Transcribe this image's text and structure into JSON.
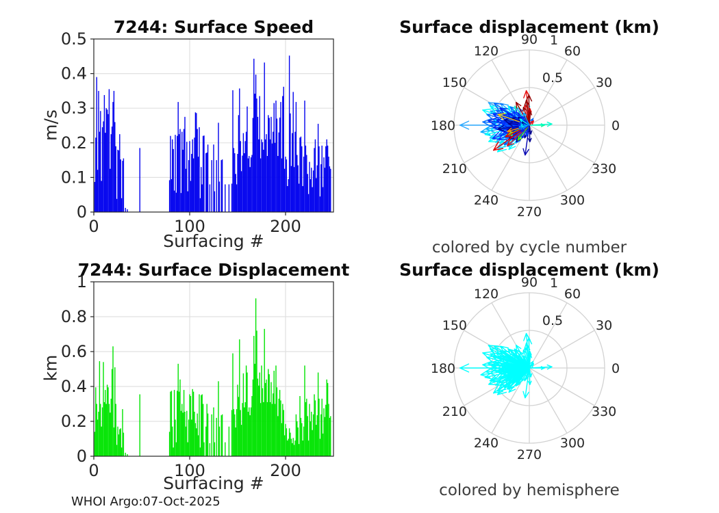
{
  "figure": {
    "watermark": "WHOI Argo:07-Oct-2025",
    "background": "#ffffff",
    "axis_color": "#262626",
    "tick_label_color": "#262626",
    "grid_color": "#e0e0e0",
    "polar_grid_color": "#d2d2d2"
  },
  "displacement_vectors": [
    {
      "a": 180,
      "r": 0.92,
      "c": "#29A8FF"
    },
    {
      "a": 151,
      "r": 0.62,
      "c": "#29A8FF"
    },
    {
      "a": 188,
      "r": 0.65,
      "c": "#00AAFF"
    },
    {
      "a": 160,
      "r": 0.55,
      "c": "#00AAFF"
    },
    {
      "a": 143,
      "r": 0.48,
      "c": "#29A8FF"
    },
    {
      "a": 170,
      "r": 0.48,
      "c": "#0090FF"
    },
    {
      "a": 185,
      "r": 0.58,
      "c": "#00AAFF"
    },
    {
      "a": 198,
      "r": 0.55,
      "c": "#2FB0FF"
    },
    {
      "a": 207,
      "r": 0.5,
      "c": "#00AAFF"
    },
    {
      "a": 216,
      "r": 0.52,
      "c": "#38B8FF"
    },
    {
      "a": 225,
      "r": 0.4,
      "c": "#00AAFF"
    },
    {
      "a": 233,
      "r": 0.3,
      "c": "#29A8FF"
    },
    {
      "a": 154,
      "r": 0.58,
      "c": "#00FFFF"
    },
    {
      "a": 147,
      "r": 0.42,
      "c": "#00F5FF"
    },
    {
      "a": 162,
      "r": 0.65,
      "c": "#00FFFF"
    },
    {
      "a": 175,
      "r": 0.5,
      "c": "#00FFFF"
    },
    {
      "a": 183,
      "r": 0.4,
      "c": "#00F5FF"
    },
    {
      "a": 192,
      "r": 0.6,
      "c": "#00FFFF"
    },
    {
      "a": 202,
      "r": 0.58,
      "c": "#00FFFF"
    },
    {
      "a": 211,
      "r": 0.45,
      "c": "#00F0FF"
    },
    {
      "a": 220,
      "r": 0.55,
      "c": "#00FFFF"
    },
    {
      "a": 230,
      "r": 0.42,
      "c": "#00FFFF"
    },
    {
      "a": 138,
      "r": 0.38,
      "c": "#00E8FF"
    },
    {
      "a": 95,
      "r": 0.3,
      "c": "#00D8FF"
    },
    {
      "a": 148,
      "r": 0.55,
      "c": "#0066FF"
    },
    {
      "a": 156,
      "r": 0.48,
      "c": "#0066FF"
    },
    {
      "a": 166,
      "r": 0.58,
      "c": "#0070FF"
    },
    {
      "a": 172,
      "r": 0.38,
      "c": "#0066FF"
    },
    {
      "a": 181,
      "r": 0.52,
      "c": "#0060FF"
    },
    {
      "a": 189,
      "r": 0.34,
      "c": "#0066FF"
    },
    {
      "a": 197,
      "r": 0.42,
      "c": "#0070FF"
    },
    {
      "a": 208,
      "r": 0.36,
      "c": "#0066FF"
    },
    {
      "a": 218,
      "r": 0.42,
      "c": "#0060FF"
    },
    {
      "a": 228,
      "r": 0.24,
      "c": "#0066FF"
    },
    {
      "a": 136,
      "r": 0.35,
      "c": "#0070FF"
    },
    {
      "a": 120,
      "r": 0.25,
      "c": "#0066FF"
    },
    {
      "a": 194,
      "r": 0.28,
      "c": "#0060FF"
    },
    {
      "a": 176,
      "r": 0.62,
      "c": "#0070FF"
    },
    {
      "a": 150,
      "r": 0.45,
      "c": "#0022F0"
    },
    {
      "a": 158,
      "r": 0.38,
      "c": "#0022F0"
    },
    {
      "a": 163,
      "r": 0.5,
      "c": "#0028FF"
    },
    {
      "a": 171,
      "r": 0.44,
      "c": "#0022F0"
    },
    {
      "a": 178,
      "r": 0.36,
      "c": "#0030FF"
    },
    {
      "a": 184,
      "r": 0.48,
      "c": "#0022F0"
    },
    {
      "a": 190,
      "r": 0.4,
      "c": "#0028FF"
    },
    {
      "a": 196,
      "r": 0.35,
      "c": "#0022F0"
    },
    {
      "a": 205,
      "r": 0.45,
      "c": "#0030FF"
    },
    {
      "a": 212,
      "r": 0.26,
      "c": "#0022F0"
    },
    {
      "a": 222,
      "r": 0.3,
      "c": "#0028FF"
    },
    {
      "a": 240,
      "r": 0.2,
      "c": "#0022F0"
    },
    {
      "a": 140,
      "r": 0.28,
      "c": "#0030FF"
    },
    {
      "a": 132,
      "r": 0.22,
      "c": "#0022F0"
    },
    {
      "a": 127,
      "r": 0.3,
      "c": "#0028FF"
    },
    {
      "a": 174,
      "r": 0.55,
      "c": "#0022F0"
    },
    {
      "a": 186,
      "r": 0.22,
      "c": "#0030FF"
    },
    {
      "a": 167,
      "r": 0.2,
      "c": "#0022F0"
    },
    {
      "a": 200,
      "r": 0.52,
      "c": "#0028FF"
    },
    {
      "a": 152,
      "r": 0.33,
      "c": "#0022F0"
    },
    {
      "a": 168,
      "r": 0.34,
      "c": "#00008F"
    },
    {
      "a": 176,
      "r": 0.28,
      "c": "#00008F"
    },
    {
      "a": 187,
      "r": 0.42,
      "c": "#000098"
    },
    {
      "a": 193,
      "r": 0.3,
      "c": "#00008F"
    },
    {
      "a": 203,
      "r": 0.25,
      "c": "#0000A8"
    },
    {
      "a": 214,
      "r": 0.33,
      "c": "#00008F"
    },
    {
      "a": 262,
      "r": 0.4,
      "c": "#0000B0"
    },
    {
      "a": 272,
      "r": 0.22,
      "c": "#00008F"
    },
    {
      "a": 157,
      "r": 0.25,
      "c": "#000098"
    },
    {
      "a": 145,
      "r": 0.18,
      "c": "#00008F"
    },
    {
      "a": 232,
      "r": 0.28,
      "c": "#0000A0"
    },
    {
      "a": 250,
      "r": 0.18,
      "c": "#00008F"
    },
    {
      "a": 0,
      "r": 0.2,
      "c": "#00FA9A"
    },
    {
      "a": 3,
      "r": 0.3,
      "c": "#00FFD0"
    },
    {
      "a": 128,
      "r": 0.32,
      "c": "#2BFFC8"
    },
    {
      "a": 204,
      "r": 0.32,
      "c": "#7CFC00"
    },
    {
      "a": 233,
      "r": 0.25,
      "c": "#49E20E"
    },
    {
      "a": 161,
      "r": 0.44,
      "c": "#FFC800"
    },
    {
      "a": 196,
      "r": 0.3,
      "c": "#FF9800"
    },
    {
      "a": 95,
      "r": 0.46,
      "c": "#E81010"
    },
    {
      "a": 215,
      "r": 0.58,
      "c": "#DF0000"
    },
    {
      "a": 223,
      "r": 0.4,
      "c": "#E81010"
    },
    {
      "a": 206,
      "r": 0.35,
      "c": "#DF0000"
    },
    {
      "a": 102,
      "r": 0.28,
      "c": "#E81010"
    },
    {
      "a": 88,
      "r": 0.22,
      "c": "#DF0000"
    },
    {
      "a": 97,
      "r": 0.33,
      "c": "#8F0000"
    },
    {
      "a": 108,
      "r": 0.25,
      "c": "#8F0000"
    },
    {
      "a": 120,
      "r": 0.35,
      "c": "#980000"
    },
    {
      "a": 85,
      "r": 0.18,
      "c": "#8F0000"
    },
    {
      "a": 91,
      "r": 0.4,
      "c": "#8F0000"
    },
    {
      "a": 165,
      "r": 0.14,
      "c": "#0040FF"
    },
    {
      "a": 173,
      "r": 0.12,
      "c": "#00C0FF"
    },
    {
      "a": 181,
      "r": 0.16,
      "c": "#0022F0"
    },
    {
      "a": 190,
      "r": 0.13,
      "c": "#00FFFF"
    },
    {
      "a": 199,
      "r": 0.15,
      "c": "#0066FF"
    },
    {
      "a": 209,
      "r": 0.12,
      "c": "#00AAFF"
    },
    {
      "a": 218,
      "r": 0.14,
      "c": "#0022F0"
    },
    {
      "a": 156,
      "r": 0.12,
      "c": "#00008F"
    },
    {
      "a": 147,
      "r": 0.15,
      "c": "#00FFFF"
    },
    {
      "a": 255,
      "r": 0.15,
      "c": "#0040FF"
    },
    {
      "a": 280,
      "r": 0.12,
      "c": "#00008F"
    },
    {
      "a": 60,
      "r": 0.1,
      "c": "#0066FF"
    },
    {
      "a": 45,
      "r": 0.08,
      "c": "#E81010"
    },
    {
      "a": 130,
      "r": 0.15,
      "c": "#0028FF"
    },
    {
      "a": 115,
      "r": 0.18,
      "c": "#00AAFF"
    }
  ],
  "chart_data": [
    {
      "id": "speed",
      "type": "bar",
      "title": "7244: Surface Speed",
      "xlabel": "Surfacing #",
      "ylabel": "m/s",
      "xlim": [
        0,
        250
      ],
      "ylim": [
        0,
        0.5
      ],
      "xticks": [
        0,
        100,
        200
      ],
      "yticks": [
        0,
        0.1,
        0.2,
        0.3,
        0.4,
        0.5
      ],
      "grid": true,
      "bar_color": "#0000EE",
      "values": [
        0,
        0.087,
        0.215,
        0.39,
        0.122,
        0.35,
        0.232,
        0.292,
        0.09,
        0.245,
        0.262,
        0.338,
        0.229,
        0.3,
        0.296,
        0.283,
        0.355,
        0.125,
        0.225,
        0.247,
        0.318,
        0.35,
        0.26,
        0.19,
        0.038,
        0.18,
        0.178,
        0.225,
        0.152,
        0.04,
        0.148,
        0.155,
        0,
        0.012,
        0,
        0.008,
        0,
        0,
        0,
        0,
        0,
        0,
        0,
        0,
        0,
        0,
        0,
        0,
        0.185,
        0,
        0,
        0,
        0,
        0,
        0,
        0,
        0,
        0,
        0,
        0,
        0,
        0,
        0,
        0,
        0,
        0,
        0,
        0,
        0,
        0,
        0,
        0,
        0,
        0,
        0,
        0,
        0,
        0,
        0,
        0.092,
        0.22,
        0.095,
        0.21,
        0.182,
        0.062,
        0.223,
        0.056,
        0.22,
        0.318,
        0.225,
        0.24,
        0.055,
        0.232,
        0.18,
        0.24,
        0.275,
        0.125,
        0.203,
        0.06,
        0.15,
        0.205,
        0.09,
        0.168,
        0.21,
        0.155,
        0.215,
        0.288,
        0.286,
        0.24,
        0.16,
        0.245,
        0.04,
        0.13,
        0.08,
        0.22,
        0.221,
        0,
        0.17,
        0.172,
        0.195,
        0,
        0.08,
        0,
        0.15,
        0,
        0.195,
        0.06,
        0,
        0.15,
        0,
        0.258,
        0.088,
        0,
        0.15,
        0.152,
        0,
        0,
        0.08,
        0,
        0,
        0,
        0.08,
        0,
        0,
        0.082,
        0.352,
        0.185,
        0.17,
        0.11,
        0.08,
        0.168,
        0.28,
        0.357,
        0.205,
        0.118,
        0.163,
        0.228,
        0.17,
        0.205,
        0.232,
        0.305,
        0.155,
        0.162,
        0.13,
        0.158,
        0.165,
        0.272,
        0.443,
        0.342,
        0.397,
        0.328,
        0.275,
        0.21,
        0.335,
        0.155,
        0.21,
        0.202,
        0.18,
        0.432,
        0.21,
        0.225,
        0.162,
        0.28,
        0.272,
        0.21,
        0.275,
        0.198,
        0.232,
        0.315,
        0.2,
        0.322,
        0.27,
        0.162,
        0.23,
        0.273,
        0.318,
        0.155,
        0.335,
        0.362,
        0.125,
        0.16,
        0.152,
        0.075,
        0.095,
        0.452,
        0.285,
        0.133,
        0.228,
        0.347,
        0.13,
        0.232,
        0.318,
        0.165,
        0.135,
        0.082,
        0.215,
        0.218,
        0.19,
        0.075,
        0.16,
        0.322,
        0.192,
        0.165,
        0.11,
        0.052,
        0.145,
        0.095,
        0.128,
        0.072,
        0.12,
        0.185,
        0.21,
        0.098,
        0.135,
        0.255,
        0.19,
        0.045,
        0.138,
        0.192,
        0.072,
        0.158,
        0.128,
        0.19,
        0.21,
        0.192,
        0.16,
        0.132,
        0.125,
        0,
        0
      ]
    },
    {
      "id": "polar_cycle",
      "type": "polar-quiver",
      "title": "Surface displacement (km)",
      "caption": "colored by cycle number",
      "rlim": [
        0,
        1
      ],
      "rticks": [
        0.5,
        1
      ],
      "angle_ticks_deg": [
        0,
        30,
        60,
        90,
        120,
        150,
        180,
        210,
        240,
        270,
        300,
        330
      ],
      "color_mode": "cycle"
    },
    {
      "id": "displacement",
      "type": "bar",
      "title": "7244: Surface Displacement",
      "xlabel": "Surfacing #",
      "ylabel": "km",
      "xlim": [
        0,
        250
      ],
      "ylim": [
        0,
        1
      ],
      "xticks": [
        0,
        100,
        200
      ],
      "yticks": [
        0,
        0.2,
        0.4,
        0.6,
        0.8,
        1
      ],
      "grid": true,
      "bar_color": "#00E400",
      "values": [
        0,
        0.14,
        0.395,
        0.3,
        0.21,
        0.255,
        0.545,
        0.3,
        0.17,
        0.28,
        0.54,
        0.31,
        0.38,
        0.3,
        0.41,
        0.395,
        0.3,
        0.25,
        0.33,
        0.5,
        0.63,
        0.165,
        0.51,
        0.3,
        0.065,
        0.17,
        0.125,
        0.155,
        0.16,
        0.05,
        0.27,
        0.135,
        0,
        0.02,
        0,
        0.012,
        0,
        0,
        0,
        0,
        0,
        0,
        0,
        0,
        0,
        0,
        0,
        0,
        0.355,
        0,
        0,
        0,
        0,
        0,
        0,
        0,
        0,
        0,
        0,
        0,
        0,
        0,
        0,
        0,
        0,
        0,
        0,
        0,
        0,
        0,
        0,
        0,
        0,
        0,
        0,
        0,
        0,
        0,
        0,
        0.14,
        0.37,
        0.375,
        0.17,
        0.05,
        0.38,
        0.21,
        0.08,
        0.375,
        0.53,
        0.37,
        0.44,
        0.26,
        0.3,
        0.25,
        0.38,
        0.255,
        0.17,
        0.26,
        0.08,
        0.21,
        0.355,
        0.345,
        0.21,
        0.385,
        0.37,
        0.255,
        0.19,
        0.16,
        0.245,
        0.12,
        0.355,
        0.05,
        0.35,
        0.355,
        0.3,
        0.08,
        0,
        0.17,
        0.3,
        0.245,
        0,
        0.075,
        0,
        0.24,
        0,
        0.28,
        0.08,
        0,
        0.22,
        0,
        0.43,
        0.17,
        0,
        0.235,
        0.24,
        0,
        0,
        0.08,
        0,
        0,
        0,
        0.17,
        0,
        0,
        0.265,
        0.59,
        0.27,
        0.24,
        0.165,
        0.27,
        0.41,
        0.34,
        0.67,
        0.265,
        0.18,
        0.305,
        0.475,
        0.28,
        0.31,
        0.52,
        0.48,
        0.255,
        0.28,
        0.235,
        0.28,
        0.345,
        0.44,
        0.69,
        0.53,
        0.905,
        0.72,
        0.445,
        0.405,
        0.48,
        0.305,
        0.52,
        0.39,
        0.31,
        0.73,
        0.42,
        0.44,
        0.31,
        0.5,
        0.47,
        0.31,
        0.425,
        0.3,
        0.36,
        0.49,
        0.3,
        0.52,
        0.395,
        0.23,
        0.33,
        0.38,
        0.32,
        0.19,
        0.3,
        0.265,
        0.12,
        0.185,
        0.16,
        0.09,
        0.1,
        0.16,
        0.135,
        0.1,
        0.075,
        0.105,
        0.065,
        0.09,
        0.24,
        0.2,
        0.165,
        0.07,
        0.345,
        0.22,
        0.19,
        0.09,
        0.17,
        0.52,
        0.31,
        0.33,
        0.23,
        0.09,
        0.3,
        0.2,
        0.255,
        0.15,
        0.24,
        0.355,
        0.32,
        0.18,
        0.235,
        0.48,
        0.33,
        0.1,
        0.24,
        0.33,
        0.13,
        0.275,
        0.225,
        0.295,
        0.44,
        0.42,
        0.3,
        0.22,
        0.23,
        0,
        0
      ]
    },
    {
      "id": "polar_hemisphere",
      "type": "polar-quiver",
      "title": "Surface displacement (km)",
      "caption": "colored by hemisphere",
      "rlim": [
        0,
        1
      ],
      "rticks": [
        0.5,
        1
      ],
      "angle_ticks_deg": [
        0,
        30,
        60,
        90,
        120,
        150,
        180,
        210,
        240,
        270,
        300,
        330
      ],
      "color_mode": "hemisphere",
      "uniform_color": "#00FFFF"
    }
  ]
}
